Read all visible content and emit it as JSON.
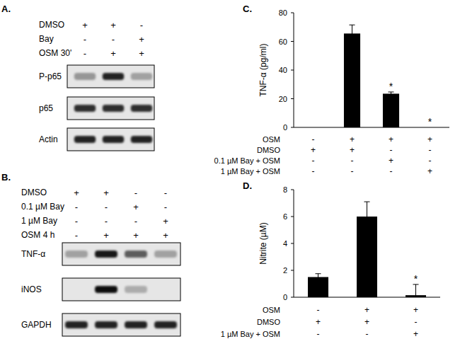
{
  "blots": [
    {
      "panel": "A.",
      "treatments": [
        {
          "label": "DMSO",
          "signs": [
            "+",
            "+",
            "-"
          ]
        },
        {
          "label": "Bay",
          "signs": [
            "-",
            "-",
            "+"
          ]
        },
        {
          "label": "OSM 30'",
          "signs": [
            "-",
            "+",
            "+"
          ]
        }
      ],
      "rows": [
        {
          "label": "P-p65",
          "bands": [
            0.35,
            0.85,
            0.3
          ]
        },
        {
          "label": "p65",
          "bands": [
            0.8,
            0.8,
            0.8
          ]
        },
        {
          "label": "Actin",
          "bands": [
            0.85,
            0.85,
            0.85
          ]
        }
      ]
    },
    {
      "panel": "B.",
      "treatments": [
        {
          "label": "DMSO",
          "signs": [
            "+",
            "+",
            "-",
            "-"
          ]
        },
        {
          "label": "0.1 µM Bay",
          "signs": [
            "-",
            "-",
            "+",
            "-"
          ]
        },
        {
          "label": "1 µM Bay",
          "signs": [
            "-",
            "-",
            "-",
            "+"
          ]
        },
        {
          "label": "OSM 4 h",
          "signs": [
            "-",
            "+",
            "+",
            "+"
          ]
        }
      ],
      "rows": [
        {
          "label": "TNF-α",
          "bands": [
            0.3,
            0.9,
            0.6,
            0.3
          ]
        },
        {
          "label": "iNOS",
          "bands": [
            0,
            0.95,
            0.25,
            0
          ]
        },
        {
          "label": "GAPDH",
          "bands": [
            0.85,
            0.85,
            0.85,
            0.85
          ]
        }
      ]
    }
  ],
  "chart_data": [
    {
      "type": "bar",
      "panel": "C.",
      "y_label": "TNF-α (pg/ml)",
      "categories": [
        null,
        null,
        null,
        null
      ],
      "values": [
        0,
        65.5,
        23.5,
        0
      ],
      "errors": [
        null,
        6,
        1.2,
        null
      ],
      "significance": [
        null,
        null,
        "*",
        "*"
      ],
      "conditions": [
        {
          "label": "OSM",
          "signs": [
            "-",
            "+",
            "+",
            "+"
          ]
        },
        {
          "label": "DMSO",
          "signs": [
            "+",
            "+",
            "-",
            "-"
          ]
        },
        {
          "label": "0.1 µM Bay + OSM",
          "signs": [
            "-",
            "-",
            "+",
            "-"
          ]
        },
        {
          "label": "1 µM Bay + OSM",
          "signs": [
            "-",
            "-",
            "-",
            "+"
          ]
        }
      ],
      "color": "#000000",
      "ylim": [
        0,
        80
      ],
      "yticks": [
        0,
        20,
        40,
        60,
        80
      ]
    },
    {
      "type": "bar",
      "panel": "D.",
      "y_label": "Nitrite (µM)",
      "categories": [
        null,
        null,
        null
      ],
      "values": [
        1.5,
        6,
        0.15
      ],
      "errors": [
        0.25,
        1.1,
        0.8
      ],
      "significance": [
        null,
        null,
        "*"
      ],
      "conditions": [
        {
          "label": "OSM",
          "signs": [
            "-",
            "+",
            "+"
          ]
        },
        {
          "label": "DMSO",
          "signs": [
            "+",
            "+",
            "-"
          ]
        },
        {
          "label": "1 µM Bay + OSM",
          "signs": [
            "-",
            "-",
            "+"
          ]
        }
      ],
      "color": "#000000",
      "ylim": [
        0,
        8
      ],
      "yticks": [
        0,
        2,
        4,
        6,
        8
      ]
    }
  ]
}
